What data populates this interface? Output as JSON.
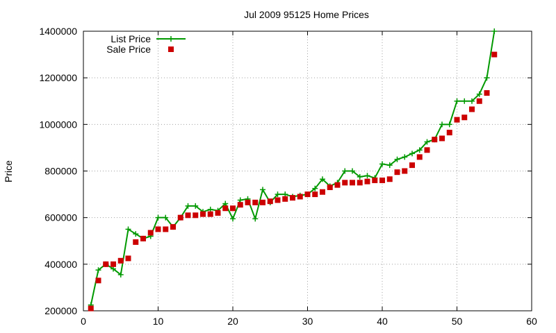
{
  "chart_data": {
    "type": "line",
    "title": "Jul 2009 95125 Home Prices",
    "xlabel": "",
    "ylabel": "Price",
    "xlim": [
      0,
      60
    ],
    "ylim": [
      200000,
      1400000
    ],
    "xticks": [
      0,
      10,
      20,
      30,
      40,
      50,
      60
    ],
    "yticks": [
      200000,
      400000,
      600000,
      800000,
      1000000,
      1200000,
      1400000
    ],
    "grid": true,
    "legend_position": "top-left",
    "series": [
      {
        "name": "List Price",
        "style": "line-plus",
        "color": "#009900",
        "x": [
          1,
          2,
          3,
          4,
          5,
          6,
          7,
          8,
          9,
          10,
          11,
          12,
          13,
          14,
          15,
          16,
          17,
          18,
          19,
          20,
          21,
          22,
          23,
          24,
          25,
          26,
          27,
          28,
          29,
          30,
          31,
          32,
          33,
          34,
          35,
          36,
          37,
          38,
          39,
          40,
          41,
          42,
          43,
          44,
          45,
          46,
          47,
          48,
          49,
          50,
          51,
          52,
          53,
          54,
          55
        ],
        "y": [
          225000,
          375000,
          400000,
          380000,
          355000,
          550000,
          530000,
          510000,
          520000,
          600000,
          600000,
          560000,
          600000,
          650000,
          650000,
          625000,
          635000,
          630000,
          660000,
          595000,
          675000,
          680000,
          595000,
          720000,
          665000,
          700000,
          700000,
          690000,
          695000,
          700000,
          725000,
          765000,
          735000,
          750000,
          800000,
          800000,
          775000,
          780000,
          770000,
          830000,
          825000,
          850000,
          860000,
          875000,
          890000,
          925000,
          935000,
          1000000,
          1000000,
          1100000,
          1100000,
          1100000,
          1130000,
          1200000,
          1400000
        ]
      },
      {
        "name": "Sale Price",
        "style": "square-points",
        "color": "#cc0000",
        "x": [
          1,
          2,
          3,
          4,
          5,
          6,
          7,
          8,
          9,
          10,
          11,
          12,
          13,
          14,
          15,
          16,
          17,
          18,
          19,
          20,
          21,
          22,
          23,
          24,
          25,
          26,
          27,
          28,
          29,
          30,
          31,
          32,
          33,
          34,
          35,
          36,
          37,
          38,
          39,
          40,
          41,
          42,
          43,
          44,
          45,
          46,
          47,
          48,
          49,
          50,
          51,
          52,
          53,
          54,
          55
        ],
        "y": [
          210000,
          330000,
          400000,
          400000,
          415000,
          425000,
          495000,
          510000,
          535000,
          550000,
          550000,
          560000,
          600000,
          610000,
          610000,
          615000,
          615000,
          620000,
          640000,
          640000,
          655000,
          665000,
          665000,
          665000,
          670000,
          675000,
          680000,
          685000,
          690000,
          700000,
          700000,
          710000,
          730000,
          740000,
          750000,
          750000,
          750000,
          755000,
          760000,
          760000,
          765000,
          795000,
          800000,
          825000,
          860000,
          890000,
          935000,
          940000,
          965000,
          1020000,
          1030000,
          1065000,
          1100000,
          1135000,
          1300000
        ]
      }
    ]
  }
}
